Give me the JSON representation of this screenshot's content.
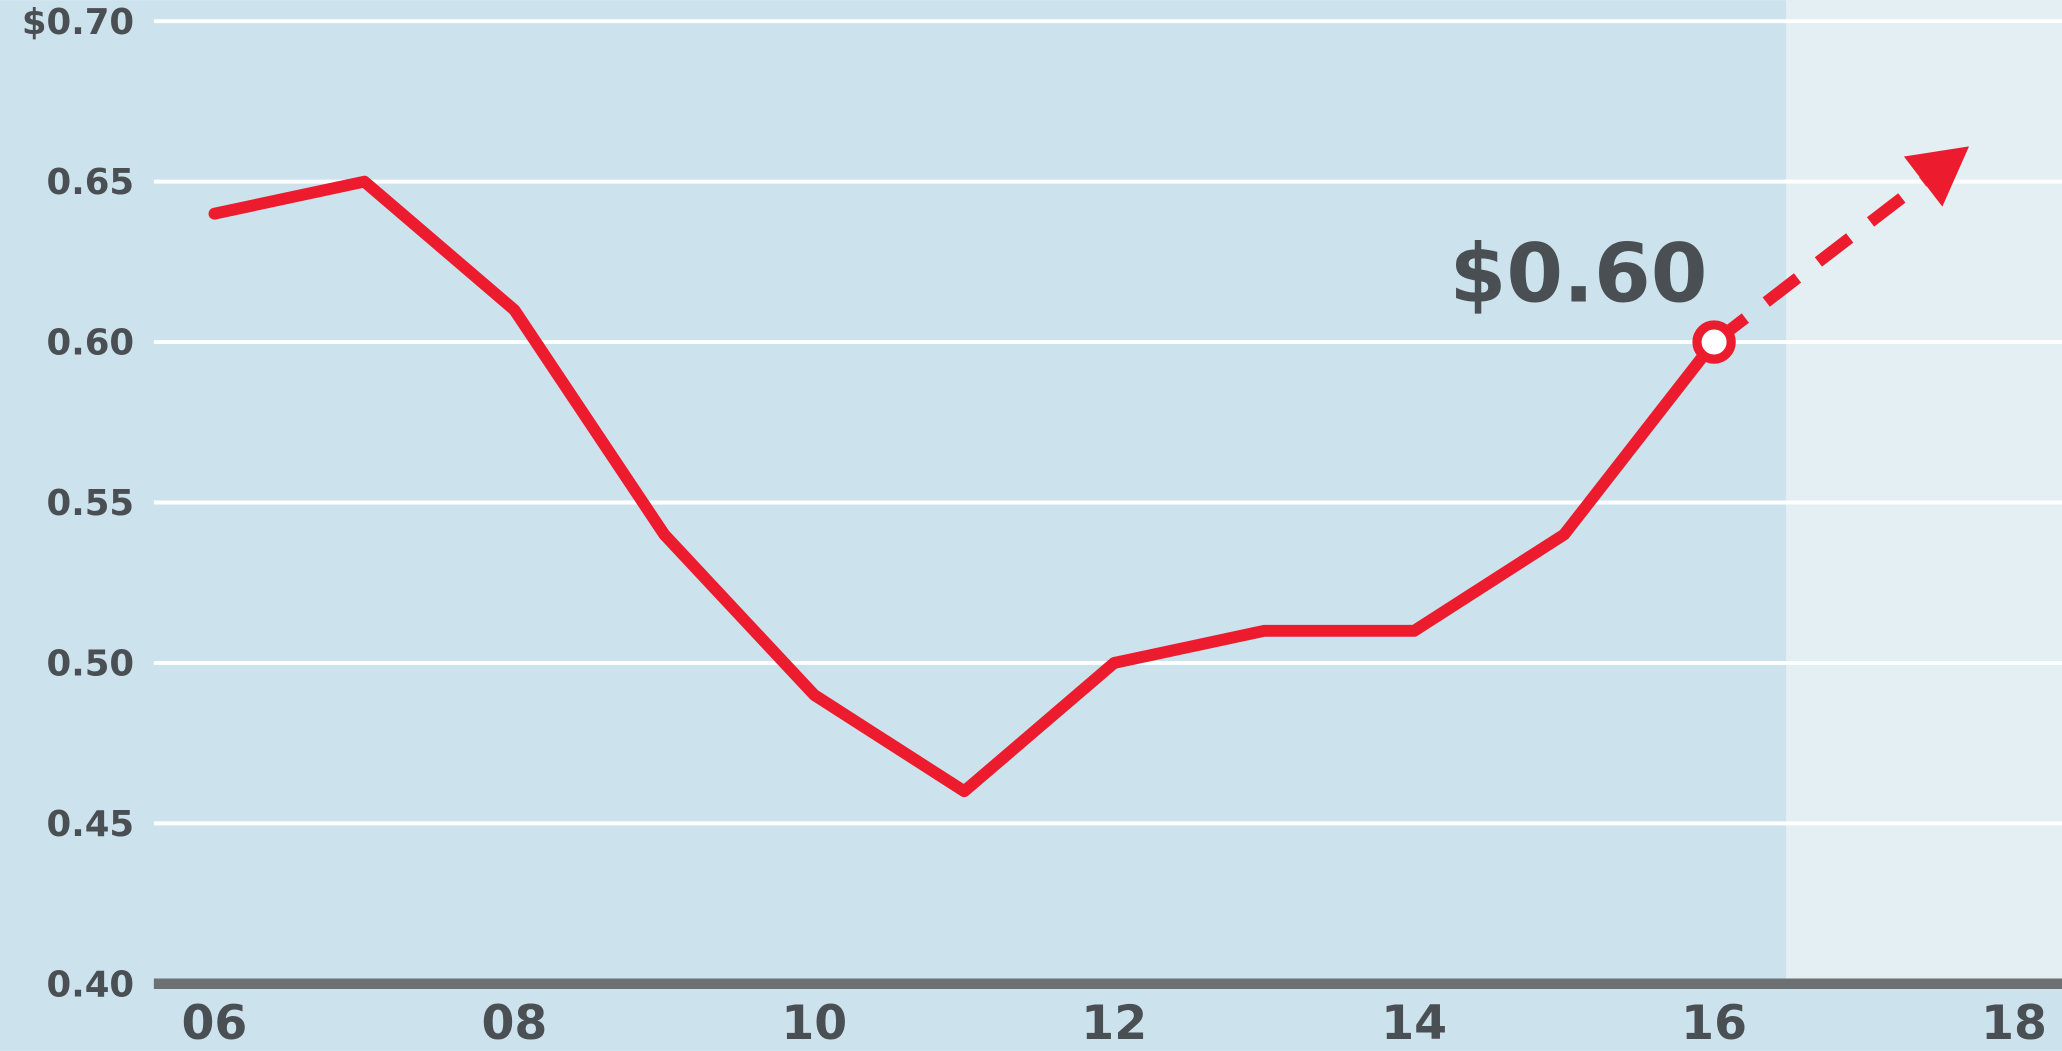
{
  "chart_data": {
    "type": "line",
    "series": [
      {
        "color": "#ec1c2e",
        "dashed": false,
        "x": [
          6,
          7,
          8,
          9,
          10,
          11,
          12,
          13,
          14,
          15,
          16
        ],
        "values": [
          0.64,
          0.65,
          0.61,
          0.54,
          0.49,
          0.46,
          0.5,
          0.51,
          0.51,
          0.54,
          0.6
        ]
      },
      {
        "color": "#ec1c2e",
        "dashed": true,
        "arrow": true,
        "x": [
          16,
          17.7
        ],
        "values": [
          0.6,
          0.661
        ]
      }
    ],
    "annotation": {
      "text": "$0.60",
      "x": 16,
      "y": 0.6
    },
    "xlim": [
      4.57,
      18.32
    ],
    "xticks": [
      {
        "value": 6,
        "label": "06"
      },
      {
        "value": 8,
        "label": "08"
      },
      {
        "value": 10,
        "label": "10"
      },
      {
        "value": 12,
        "label": "12"
      },
      {
        "value": 14,
        "label": "14"
      },
      {
        "value": 16,
        "label": "16"
      },
      {
        "value": 18,
        "label": "18"
      }
    ],
    "ylim": [
      0.4,
      0.7
    ],
    "yticks": [
      {
        "value": 0.4,
        "label": "0.40"
      },
      0.45,
      {
        "value": 0.5,
        "label": "0.50"
      },
      0.55,
      {
        "value": 0.6,
        "label": "0.60"
      },
      0.65,
      {
        "value": 0.7,
        "label": "$0.70"
      }
    ],
    "grid": true,
    "background": "#cce2ec",
    "forecast_region": [
      16.48,
      18.32
    ],
    "forecast_color": "#e3eff3"
  }
}
